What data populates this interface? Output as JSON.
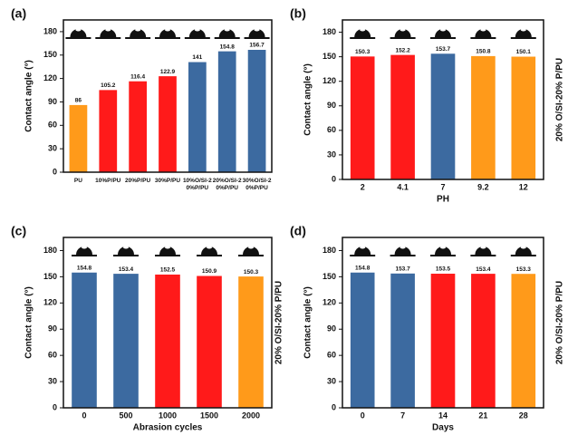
{
  "chart_data": [
    {
      "type": "bar",
      "panel": "(a)",
      "ylabel": "Contact angle (°)",
      "categories": [
        "PU",
        "10%P/PU",
        "20%P/PU",
        "30%P/PU",
        "10%O/SI-20%P/PU",
        "20%O/SI-20%P/PU",
        "30%O/SI-20%P/PU"
      ],
      "values": [
        86,
        105.2,
        116.4,
        122.9,
        141,
        154.8,
        156.7
      ],
      "colors": [
        "#ff9a1a",
        "#ff1a1a",
        "#ff1a1a",
        "#ff1a1a",
        "#3c6aa0",
        "#3c6aa0",
        "#3c6aa0"
      ],
      "ylim": [
        0,
        195
      ],
      "yticks": [
        0,
        30,
        60,
        90,
        120,
        150,
        180
      ],
      "grid": false
    },
    {
      "type": "bar",
      "panel": "(b)",
      "ylabel": "Contact angle (°)",
      "xlabel": "PH",
      "y2_label": "20% O/SI-20% P/PU",
      "categories": [
        "2",
        "4.1",
        "7",
        "9.2",
        "12"
      ],
      "values": [
        150.3,
        152.2,
        153.7,
        150.8,
        150.1
      ],
      "colors": [
        "#ff1a1a",
        "#ff1a1a",
        "#3c6aa0",
        "#ff9a1a",
        "#ff9a1a"
      ],
      "ylim": [
        0,
        195
      ],
      "yticks": [
        0,
        30,
        60,
        90,
        120,
        150,
        180
      ],
      "grid": false
    },
    {
      "type": "bar",
      "panel": "(c)",
      "ylabel": "Contact angle (°)",
      "xlabel": "Abrasion cycles",
      "categories": [
        "0",
        "500",
        "1000",
        "1500",
        "2000"
      ],
      "values": [
        154.8,
        153.4,
        152.5,
        150.9,
        150.3
      ],
      "colors": [
        "#3c6aa0",
        "#3c6aa0",
        "#ff1a1a",
        "#ff1a1a",
        "#ff9a1a"
      ],
      "ylim": [
        0,
        195
      ],
      "yticks": [
        0,
        30,
        60,
        90,
        120,
        150,
        180
      ],
      "grid": false
    },
    {
      "type": "bar",
      "panel": "(d)",
      "ylabel": "Contact angle (°)",
      "xlabel": "Days",
      "y2_label": "20% O/SI-20% P/PU",
      "extra_label": "20% O/SI-20% P/PU",
      "categories": [
        "0",
        "7",
        "14",
        "21",
        "28"
      ],
      "values": [
        154.8,
        153.7,
        153.5,
        153.4,
        153.3
      ],
      "colors": [
        "#3c6aa0",
        "#3c6aa0",
        "#ff1a1a",
        "#ff1a1a",
        "#ff9a1a"
      ],
      "ylim": [
        0,
        195
      ],
      "yticks": [
        0,
        30,
        60,
        90,
        120,
        150,
        180
      ],
      "grid": false
    }
  ]
}
